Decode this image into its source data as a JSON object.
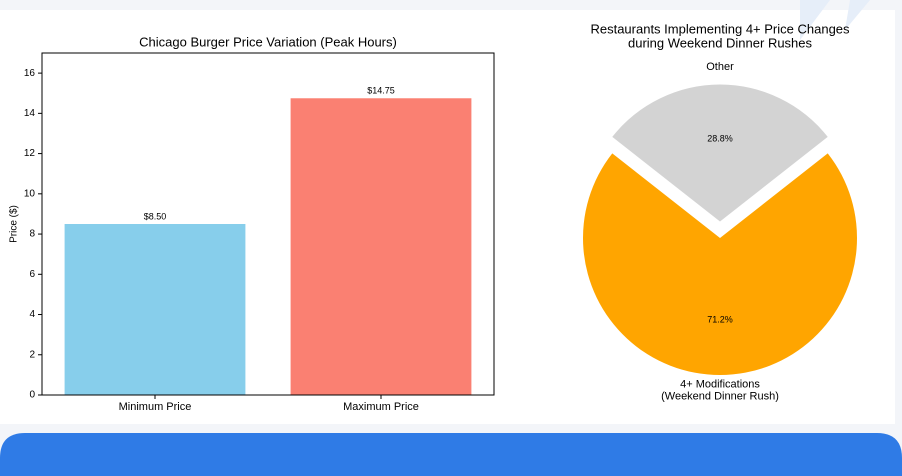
{
  "chart_data": [
    {
      "type": "bar",
      "title": "Chicago Burger Price Variation (Peak Hours)",
      "y_label": "Price ($)",
      "categories": [
        "Minimum Price",
        "Maximum Price"
      ],
      "values": [
        8.5,
        14.75
      ],
      "value_labels": [
        "$8.50",
        "$14.75"
      ],
      "colors": [
        "#87ceeb",
        "#fa8072"
      ],
      "ylim": [
        0,
        17
      ],
      "yticks": [
        0,
        2,
        4,
        6,
        8,
        10,
        12,
        14,
        16
      ],
      "grid": false
    },
    {
      "type": "pie",
      "title": "Restaurants Implementing 4+ Price Changes\nduring Weekend Dinner Rushes",
      "categories": [
        "4+ Modifications\n(Weekend Dinner Rush)",
        "Other"
      ],
      "values": [
        71.2,
        28.8
      ],
      "value_labels": [
        "71.2%",
        "28.8%"
      ],
      "colors": [
        "#ffa500",
        "#d3d3d3"
      ],
      "explode": [
        0,
        0.12
      ]
    }
  ]
}
